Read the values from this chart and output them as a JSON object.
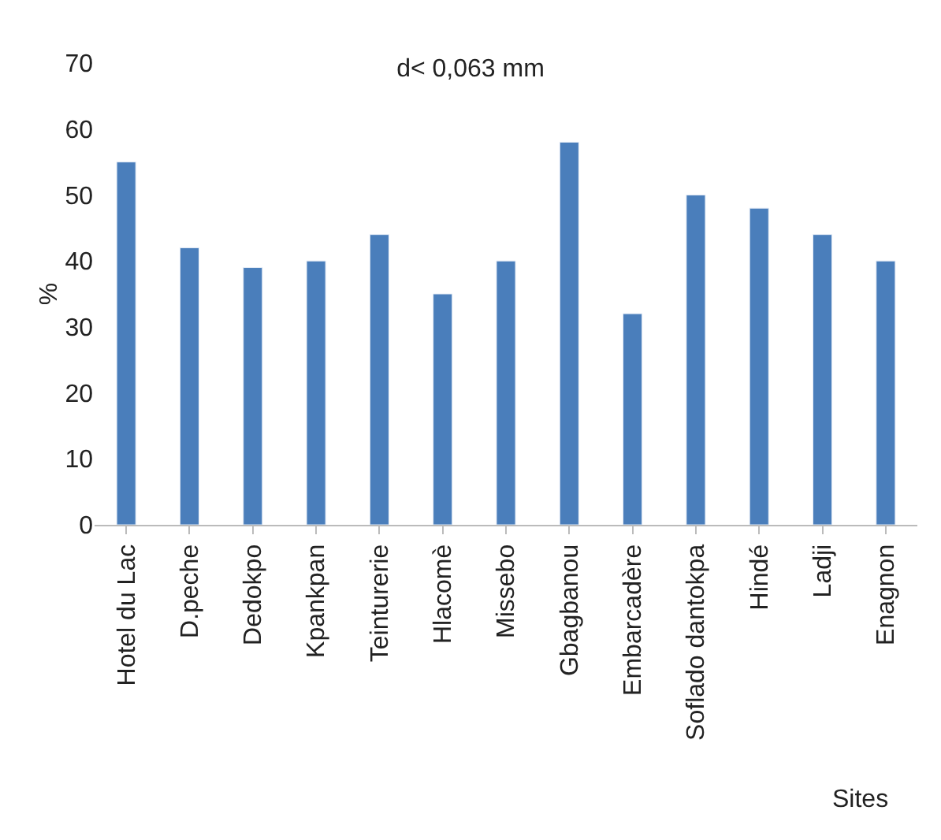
{
  "chart_data": {
    "type": "bar",
    "title": "d< 0,063 mm",
    "xlabel": "Sites",
    "ylabel": "%",
    "categories": [
      "Hotel du Lac",
      "D.peche",
      "Dedokpo",
      "Kpankpan",
      "Teinturerie",
      "Hlacomè",
      "Missebo",
      "Gbagbanou",
      "Embarcadère",
      "Soflado dantokpa",
      "Hindé",
      "Ladji",
      "Enagnon"
    ],
    "values": [
      55,
      42,
      39,
      40,
      44,
      35,
      40,
      58,
      32,
      50,
      48,
      44,
      40
    ],
    "color": "#4a7ebb",
    "ylim": [
      0,
      70
    ],
    "yticks": [
      0,
      10,
      20,
      30,
      40,
      50,
      60,
      70
    ]
  }
}
